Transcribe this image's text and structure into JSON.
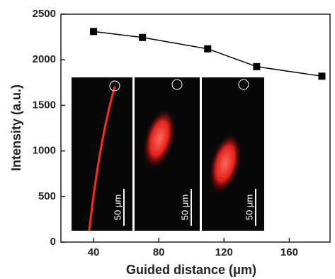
{
  "chart_data": {
    "type": "line",
    "x_label": "Guided distance (μm)",
    "y_label": "Intensity (a.u.)",
    "x": [
      40,
      70,
      110,
      140,
      180
    ],
    "series": [
      {
        "color": "#000000",
        "values": [
          2310,
          2245,
          2120,
          1925,
          1820
        ]
      }
    ],
    "xlim": [
      20,
      185
    ],
    "xticks": [
      40,
      80,
      120,
      160
    ],
    "ylim": [
      0,
      2500
    ],
    "yticks": [
      0,
      500,
      1000,
      1500,
      2000,
      2500
    ],
    "annotations": [
      "50 μm",
      "50 μm",
      "50 μm"
    ]
  }
}
